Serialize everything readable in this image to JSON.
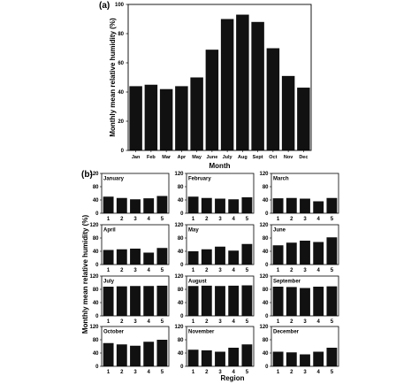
{
  "chart_data": [
    {
      "panel_label": "(a)",
      "type": "bar",
      "categories": [
        "Jan",
        "Feb",
        "Mar",
        "Apr",
        "May",
        "June",
        "July",
        "Aug",
        "Sept",
        "Oct",
        "Nov",
        "Dec"
      ],
      "values": [
        44,
        45,
        42,
        44,
        50,
        69,
        90,
        93,
        88,
        70,
        51,
        43
      ],
      "xlabel": "Month",
      "ylabel": "Monthly mean relative humidity (%)",
      "ylim": [
        0,
        100
      ],
      "yticks": [
        "0",
        "20",
        "40",
        "60",
        "80",
        "100"
      ],
      "bar_color": "#111111"
    },
    {
      "panel_label": "(b)",
      "type": "bar",
      "xlabel": "Region",
      "ylabel": "Monthly mean relative humidity (%)",
      "ylim": [
        0,
        120
      ],
      "yticks": [
        "0",
        "40",
        "80",
        "120"
      ],
      "categories": [
        "1",
        "2",
        "3",
        "4",
        "5"
      ],
      "bar_color": "#111111",
      "panels": [
        {
          "month": "January",
          "values": [
            50,
            46,
            42,
            45,
            52
          ]
        },
        {
          "month": "February",
          "values": [
            50,
            46,
            44,
            42,
            48
          ]
        },
        {
          "month": "March",
          "values": [
            45,
            46,
            44,
            36,
            46
          ]
        },
        {
          "month": "April",
          "values": [
            44,
            46,
            48,
            36,
            50
          ]
        },
        {
          "month": "May",
          "values": [
            40,
            46,
            54,
            42,
            62
          ]
        },
        {
          "month": "June",
          "values": [
            58,
            66,
            72,
            68,
            82
          ]
        },
        {
          "month": "July",
          "values": [
            88,
            89,
            90,
            90,
            91
          ]
        },
        {
          "month": "August",
          "values": [
            90,
            91,
            90,
            91,
            92
          ]
        },
        {
          "month": "September",
          "values": [
            88,
            87,
            84,
            88,
            89
          ]
        },
        {
          "month": "October",
          "values": [
            70,
            66,
            62,
            74,
            80
          ]
        },
        {
          "month": "November",
          "values": [
            50,
            48,
            44,
            56,
            66
          ]
        },
        {
          "month": "December",
          "values": [
            44,
            42,
            36,
            44,
            56
          ]
        }
      ]
    }
  ]
}
